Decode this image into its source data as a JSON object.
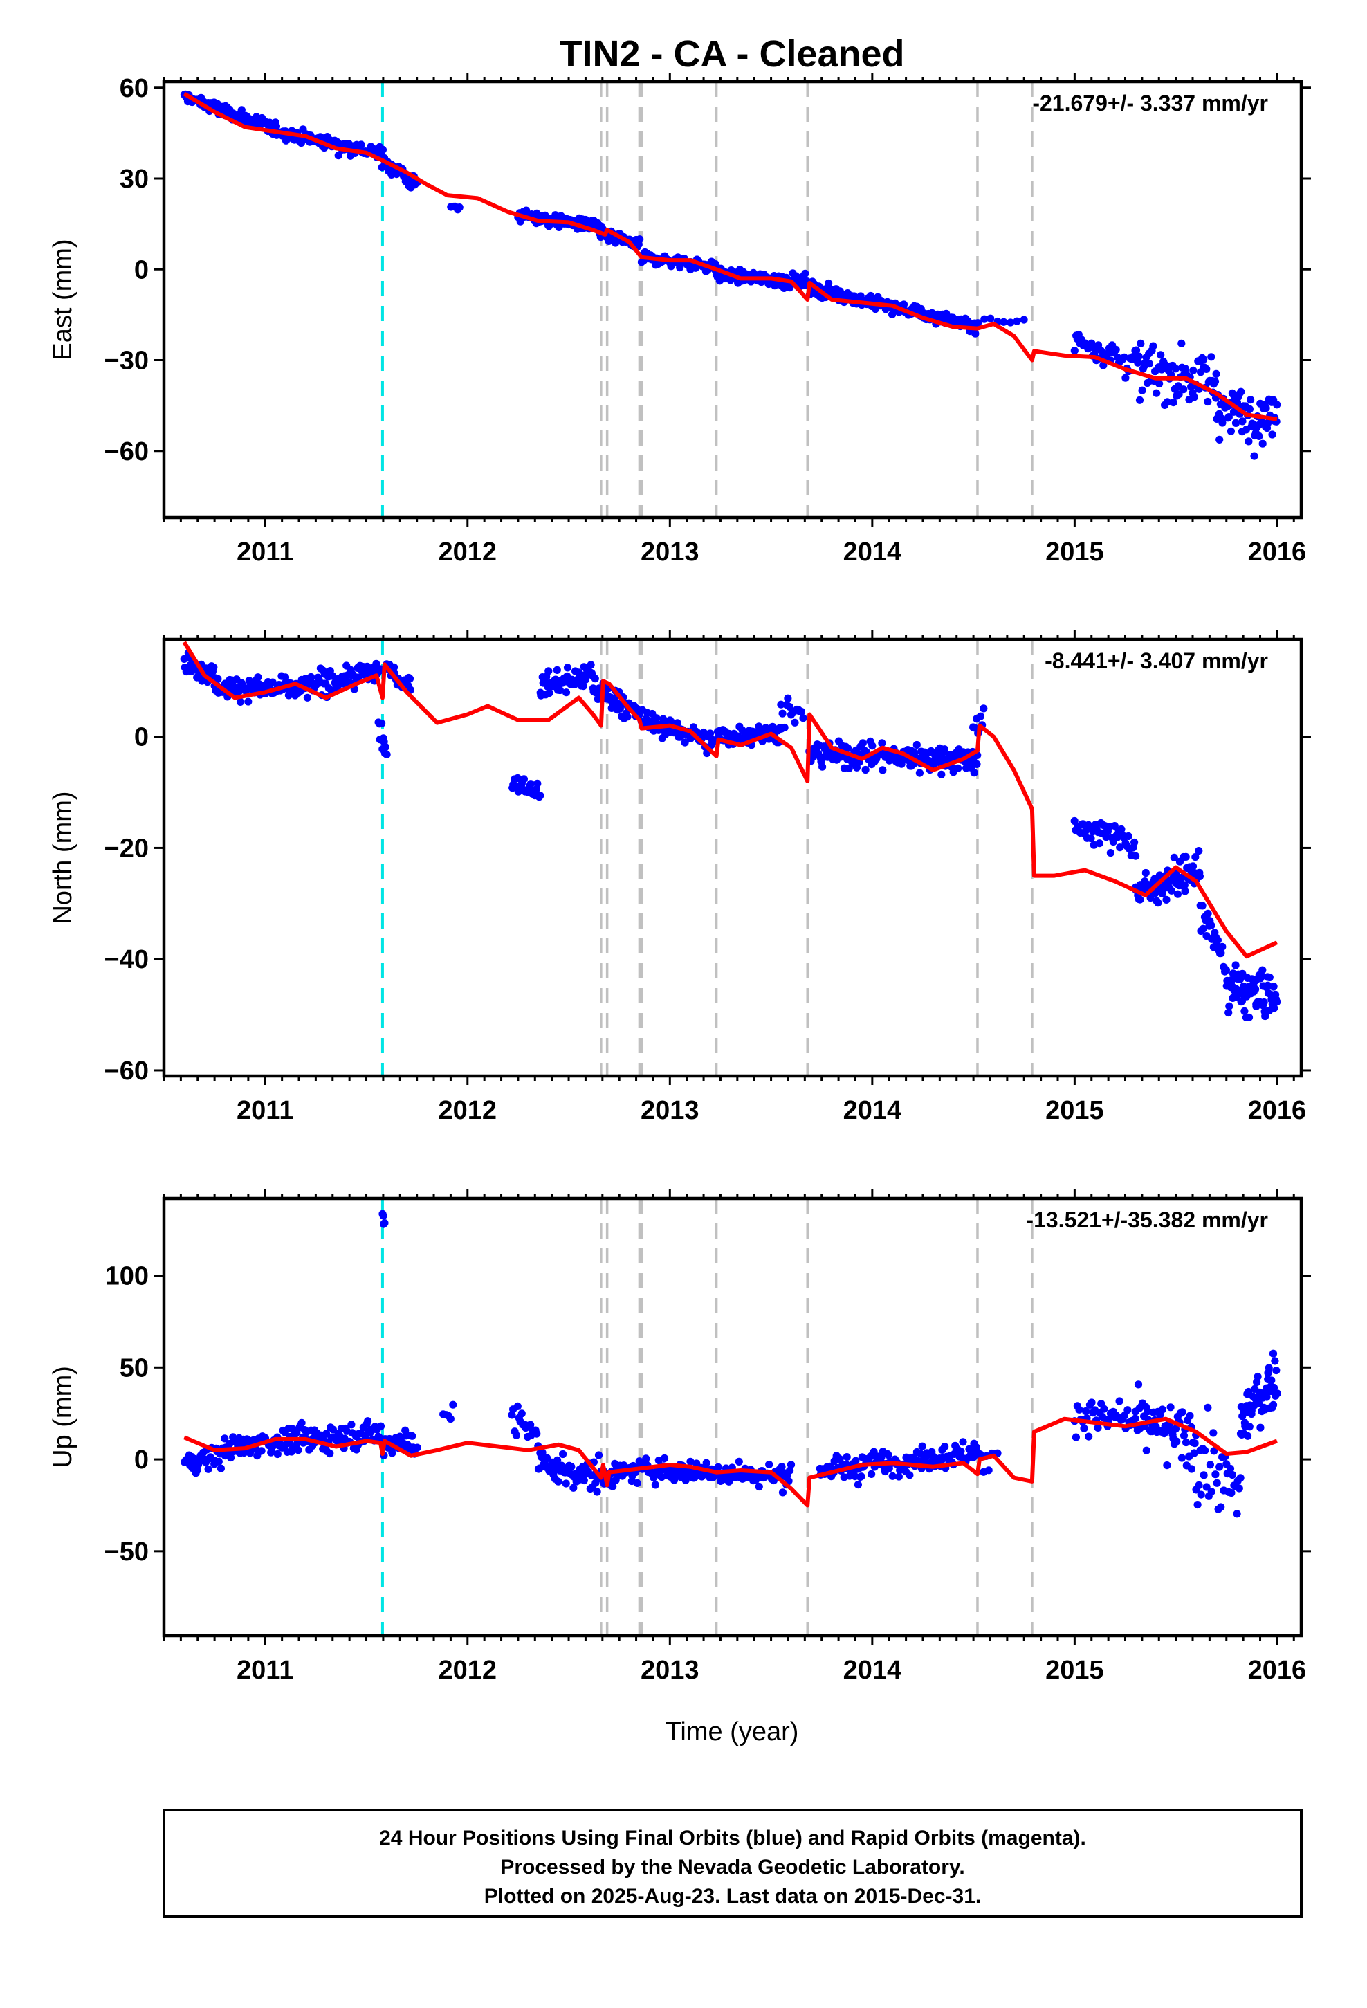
{
  "title": "TIN2  - CA - Cleaned",
  "xlabel": "Time (year)",
  "footer": {
    "line1": "24 Hour Positions Using Final Orbits (blue) and Rapid Orbits (magenta).",
    "line2": "Processed by the Nevada Geodetic Laboratory.",
    "line3": "Plotted on 2025-Aug-23. Last data on 2015-Dec-31."
  },
  "colors": {
    "points": "#0000ff",
    "model": "#ff0000",
    "equipment_change": "#c0c0c0",
    "earthquake": "#00e5e5",
    "axis": "#000000"
  },
  "chart_data": [
    {
      "type": "scatter",
      "panel": "east",
      "ylabel": "East (mm)",
      "rate": "-21.679+/- 3.337 mm/yr",
      "xlim": [
        2010.5,
        2016.12
      ],
      "ylim": [
        -82,
        62
      ],
      "xticks": [
        2011,
        2012,
        2013,
        2014,
        2015,
        2016
      ],
      "yticks": [
        60,
        30,
        0,
        -30,
        -60
      ],
      "ytick_labels": [
        "60",
        "30",
        "0",
        "−30",
        "−60"
      ],
      "gray_lines": [
        2012.66,
        2012.69,
        2012.85,
        2012.86,
        2013.23,
        2013.68,
        2014.52,
        2014.79
      ],
      "cyan_lines": [
        2011.58
      ],
      "model": [
        [
          2010.6,
          58
        ],
        [
          2010.75,
          52
        ],
        [
          2010.9,
          47
        ],
        [
          2011.05,
          45.5
        ],
        [
          2011.2,
          44
        ],
        [
          2011.35,
          40
        ],
        [
          2011.5,
          38.5
        ],
        [
          2011.58,
          36
        ],
        [
          2011.7,
          32
        ],
        [
          2011.8,
          28
        ],
        [
          2011.9,
          24.5
        ],
        [
          2012.05,
          23.5
        ],
        [
          2012.2,
          19
        ],
        [
          2012.35,
          16
        ],
        [
          2012.5,
          15.5
        ],
        [
          2012.62,
          13
        ],
        [
          2012.68,
          11.5
        ],
        [
          2012.69,
          13
        ],
        [
          2012.8,
          9
        ],
        [
          2012.86,
          4
        ],
        [
          2013.0,
          3
        ],
        [
          2013.1,
          3
        ],
        [
          2013.23,
          0
        ],
        [
          2013.35,
          -3
        ],
        [
          2013.5,
          -3
        ],
        [
          2013.6,
          -4
        ],
        [
          2013.68,
          -10
        ],
        [
          2013.69,
          -4.5
        ],
        [
          2013.8,
          -10
        ],
        [
          2013.95,
          -11
        ],
        [
          2014.1,
          -12
        ],
        [
          2014.25,
          -16
        ],
        [
          2014.4,
          -19
        ],
        [
          2014.52,
          -19.5
        ],
        [
          2014.6,
          -18
        ],
        [
          2014.7,
          -22
        ],
        [
          2014.79,
          -30
        ],
        [
          2014.8,
          -27
        ],
        [
          2014.95,
          -28.5
        ],
        [
          2015.1,
          -29
        ],
        [
          2015.25,
          -33
        ],
        [
          2015.4,
          -36
        ],
        [
          2015.55,
          -36
        ],
        [
          2015.7,
          -41
        ],
        [
          2015.85,
          -48
        ],
        [
          2016.0,
          -49.5
        ]
      ],
      "point_groups": [
        {
          "from": 2010.6,
          "to": 2011.1,
          "a": 57,
          "b": 45,
          "sd": 2.0,
          "n": 110
        },
        {
          "from": 2011.1,
          "to": 2011.58,
          "a": 45,
          "b": 38,
          "sd": 2.2,
          "n": 100
        },
        {
          "from": 2011.58,
          "to": 2011.75,
          "a": 36,
          "b": 28,
          "sd": 2.5,
          "n": 35
        },
        {
          "from": 2011.92,
          "to": 2011.96,
          "a": 21,
          "b": 20,
          "sd": 1.2,
          "n": 5
        },
        {
          "from": 2012.25,
          "to": 2012.65,
          "a": 18,
          "b": 14,
          "sd": 2.2,
          "n": 95
        },
        {
          "from": 2012.65,
          "to": 2012.85,
          "a": 12,
          "b": 8,
          "sd": 2.0,
          "n": 45
        },
        {
          "from": 2012.86,
          "to": 2013.23,
          "a": 4,
          "b": 1,
          "sd": 1.8,
          "n": 75
        },
        {
          "from": 2013.23,
          "to": 2013.68,
          "a": -2,
          "b": -4,
          "sd": 2.0,
          "n": 110
        },
        {
          "from": 2013.69,
          "to": 2014.52,
          "a": -6,
          "b": -19,
          "sd": 2.0,
          "n": 190
        },
        {
          "from": 2014.52,
          "to": 2014.75,
          "a": -17,
          "b": -18,
          "sd": 2.0,
          "n": 8
        },
        {
          "from": 2015.0,
          "to": 2015.3,
          "a": -23,
          "b": -31,
          "sd": 4.5,
          "n": 45
        },
        {
          "from": 2015.3,
          "to": 2015.7,
          "a": -33,
          "b": -37,
          "sd": 9.0,
          "n": 75
        },
        {
          "from": 2015.7,
          "to": 2016.0,
          "a": -45,
          "b": -50,
          "sd": 8.0,
          "n": 70
        }
      ]
    },
    {
      "type": "scatter",
      "panel": "north",
      "ylabel": "North (mm)",
      "rate": "-8.441+/- 3.407 mm/yr",
      "xlim": [
        2010.5,
        2016.12
      ],
      "ylim": [
        -61,
        17.5
      ],
      "xticks": [
        2011,
        2012,
        2013,
        2014,
        2015,
        2016
      ],
      "yticks": [
        0,
        -20,
        -40,
        -60
      ],
      "ytick_labels": [
        "0",
        "−20",
        "−40",
        "−60"
      ],
      "gray_lines": [
        2012.66,
        2012.69,
        2012.85,
        2012.86,
        2013.23,
        2013.68,
        2014.52,
        2014.79
      ],
      "cyan_lines": [
        2011.58
      ],
      "model": [
        [
          2010.6,
          17
        ],
        [
          2010.7,
          11
        ],
        [
          2010.85,
          7
        ],
        [
          2011.0,
          8
        ],
        [
          2011.15,
          9.5
        ],
        [
          2011.3,
          7
        ],
        [
          2011.45,
          9.5
        ],
        [
          2011.55,
          11
        ],
        [
          2011.58,
          7
        ],
        [
          2011.59,
          13
        ],
        [
          2011.7,
          8
        ],
        [
          2011.85,
          2.5
        ],
        [
          2012.0,
          4
        ],
        [
          2012.1,
          5.5
        ],
        [
          2012.25,
          3
        ],
        [
          2012.4,
          3
        ],
        [
          2012.55,
          7
        ],
        [
          2012.62,
          4
        ],
        [
          2012.66,
          2
        ],
        [
          2012.67,
          10
        ],
        [
          2012.7,
          9.5
        ],
        [
          2012.8,
          5
        ],
        [
          2012.85,
          3
        ],
        [
          2012.86,
          1.5
        ],
        [
          2013.0,
          2
        ],
        [
          2013.1,
          1
        ],
        [
          2013.23,
          -3.5
        ],
        [
          2013.24,
          -0.5
        ],
        [
          2013.35,
          -1.5
        ],
        [
          2013.5,
          0.5
        ],
        [
          2013.6,
          -2
        ],
        [
          2013.68,
          -8
        ],
        [
          2013.69,
          4
        ],
        [
          2013.8,
          -2
        ],
        [
          2013.95,
          -4
        ],
        [
          2014.05,
          -2
        ],
        [
          2014.15,
          -3
        ],
        [
          2014.3,
          -6
        ],
        [
          2014.45,
          -4
        ],
        [
          2014.52,
          -2.5
        ],
        [
          2014.53,
          2
        ],
        [
          2014.6,
          0
        ],
        [
          2014.7,
          -6
        ],
        [
          2014.79,
          -13
        ],
        [
          2014.8,
          -25
        ],
        [
          2014.9,
          -25
        ],
        [
          2015.05,
          -24
        ],
        [
          2015.2,
          -26
        ],
        [
          2015.35,
          -28.5
        ],
        [
          2015.5,
          -23.5
        ],
        [
          2015.6,
          -26
        ],
        [
          2015.75,
          -35
        ],
        [
          2015.85,
          -39.5
        ],
        [
          2016.0,
          -37
        ]
      ],
      "point_groups": [
        {
          "from": 2010.6,
          "to": 2010.75,
          "a": 14,
          "b": 11,
          "sd": 2.0,
          "n": 30
        },
        {
          "from": 2010.75,
          "to": 2011.2,
          "a": 9,
          "b": 8.5,
          "sd": 1.8,
          "n": 95
        },
        {
          "from": 2011.2,
          "to": 2011.57,
          "a": 9,
          "b": 12,
          "sd": 2.0,
          "n": 75
        },
        {
          "from": 2011.56,
          "to": 2011.6,
          "a": 2,
          "b": -2,
          "sd": 2.5,
          "n": 10
        },
        {
          "from": 2011.6,
          "to": 2011.72,
          "a": 12,
          "b": 9,
          "sd": 2.0,
          "n": 25
        },
        {
          "from": 2012.22,
          "to": 2012.36,
          "a": -8,
          "b": -10,
          "sd": 1.6,
          "n": 22
        },
        {
          "from": 2012.36,
          "to": 2012.62,
          "a": 9,
          "b": 11,
          "sd": 2.0,
          "n": 60
        },
        {
          "from": 2012.62,
          "to": 2012.85,
          "a": 9,
          "b": 4,
          "sd": 2.0,
          "n": 50
        },
        {
          "from": 2012.86,
          "to": 2013.23,
          "a": 3,
          "b": -1,
          "sd": 1.8,
          "n": 70
        },
        {
          "from": 2013.23,
          "to": 2013.55,
          "a": 0,
          "b": 1,
          "sd": 1.8,
          "n": 60
        },
        {
          "from": 2013.55,
          "to": 2013.66,
          "a": 5,
          "b": 3,
          "sd": 2.5,
          "n": 14
        },
        {
          "from": 2013.69,
          "to": 2014.52,
          "a": -3,
          "b": -4,
          "sd": 2.2,
          "n": 175
        },
        {
          "from": 2014.5,
          "to": 2014.55,
          "a": 1,
          "b": 2,
          "sd": 2.5,
          "n": 8
        },
        {
          "from": 2015.0,
          "to": 2015.3,
          "a": -16,
          "b": -19,
          "sd": 2.3,
          "n": 45
        },
        {
          "from": 2015.3,
          "to": 2015.62,
          "a": -28,
          "b": -24,
          "sd": 2.8,
          "n": 75
        },
        {
          "from": 2015.62,
          "to": 2015.75,
          "a": -30,
          "b": -42,
          "sd": 3.5,
          "n": 25
        },
        {
          "from": 2015.75,
          "to": 2016.0,
          "a": -45,
          "b": -47,
          "sd": 4.0,
          "n": 80
        }
      ]
    },
    {
      "type": "scatter",
      "panel": "up",
      "ylabel": "Up (mm)",
      "rate": "-13.521+/-35.382 mm/yr",
      "xlim": [
        2010.5,
        2016.12
      ],
      "ylim": [
        -96,
        142
      ],
      "xticks": [
        2011,
        2012,
        2013,
        2014,
        2015,
        2016
      ],
      "yticks": [
        100,
        50,
        0,
        -50
      ],
      "ytick_labels": [
        "100",
        "50",
        "0",
        "−50"
      ],
      "gray_lines": [
        2012.66,
        2012.69,
        2012.85,
        2012.86,
        2013.23,
        2013.68,
        2014.52,
        2014.79
      ],
      "cyan_lines": [
        2011.58
      ],
      "model": [
        [
          2010.6,
          12
        ],
        [
          2010.75,
          5
        ],
        [
          2010.9,
          6
        ],
        [
          2011.05,
          11
        ],
        [
          2011.2,
          11
        ],
        [
          2011.35,
          7
        ],
        [
          2011.5,
          10
        ],
        [
          2011.57,
          9
        ],
        [
          2011.58,
          3
        ],
        [
          2011.59,
          10
        ],
        [
          2011.72,
          2
        ],
        [
          2011.85,
          5
        ],
        [
          2012.0,
          9
        ],
        [
          2012.15,
          7
        ],
        [
          2012.3,
          5
        ],
        [
          2012.45,
          8
        ],
        [
          2012.55,
          5
        ],
        [
          2012.66,
          -10
        ],
        [
          2012.67,
          -3
        ],
        [
          2012.69,
          -14
        ],
        [
          2012.7,
          -7
        ],
        [
          2012.85,
          -5
        ],
        [
          2013.0,
          -3
        ],
        [
          2013.1,
          -4
        ],
        [
          2013.23,
          -7
        ],
        [
          2013.35,
          -6
        ],
        [
          2013.5,
          -7
        ],
        [
          2013.6,
          -16
        ],
        [
          2013.68,
          -25
        ],
        [
          2013.69,
          -10
        ],
        [
          2013.8,
          -7
        ],
        [
          2013.95,
          -3
        ],
        [
          2014.1,
          -2
        ],
        [
          2014.3,
          -4
        ],
        [
          2014.45,
          -2
        ],
        [
          2014.52,
          -8
        ],
        [
          2014.53,
          0
        ],
        [
          2014.6,
          2
        ],
        [
          2014.7,
          -10
        ],
        [
          2014.79,
          -12
        ],
        [
          2014.8,
          15
        ],
        [
          2014.95,
          22
        ],
        [
          2015.1,
          20
        ],
        [
          2015.25,
          18
        ],
        [
          2015.45,
          22
        ],
        [
          2015.6,
          15
        ],
        [
          2015.75,
          3
        ],
        [
          2015.85,
          4
        ],
        [
          2016.0,
          10
        ]
      ],
      "point_groups": [
        {
          "from": 2010.6,
          "to": 2010.8,
          "a": -2,
          "b": 3,
          "sd": 6.0,
          "n": 35
        },
        {
          "from": 2010.8,
          "to": 2011.2,
          "a": 6,
          "b": 12,
          "sd": 6.0,
          "n": 80
        },
        {
          "from": 2011.2,
          "to": 2011.57,
          "a": 10,
          "b": 15,
          "sd": 7.0,
          "n": 70
        },
        {
          "from": 2011.58,
          "to": 2011.75,
          "a": 8,
          "b": 10,
          "sd": 8.0,
          "n": 30
        },
        {
          "from": 2011.58,
          "to": 2011.59,
          "a": 134,
          "b": 130,
          "sd": 4.0,
          "n": 4
        },
        {
          "from": 2011.88,
          "to": 2011.93,
          "a": 20,
          "b": 28,
          "sd": 6.0,
          "n": 5
        },
        {
          "from": 2012.22,
          "to": 2012.35,
          "a": 20,
          "b": 15,
          "sd": 9.0,
          "n": 20
        },
        {
          "from": 2012.35,
          "to": 2012.66,
          "a": -3,
          "b": -10,
          "sd": 8.0,
          "n": 60
        },
        {
          "from": 2012.66,
          "to": 2012.85,
          "a": -8,
          "b": -7,
          "sd": 6.0,
          "n": 40
        },
        {
          "from": 2012.86,
          "to": 2013.6,
          "a": -5,
          "b": -9,
          "sd": 6.0,
          "n": 130
        },
        {
          "from": 2013.74,
          "to": 2014.52,
          "a": -6,
          "b": 4,
          "sd": 6.5,
          "n": 150
        },
        {
          "from": 2014.52,
          "to": 2014.62,
          "a": -2,
          "b": 3,
          "sd": 7.0,
          "n": 8
        },
        {
          "from": 2015.0,
          "to": 2015.3,
          "a": 25,
          "b": 20,
          "sd": 9.0,
          "n": 40
        },
        {
          "from": 2015.3,
          "to": 2015.6,
          "a": 20,
          "b": 10,
          "sd": 14.0,
          "n": 60
        },
        {
          "from": 2015.6,
          "to": 2015.82,
          "a": 0,
          "b": -20,
          "sd": 20.0,
          "n": 35
        },
        {
          "from": 2015.82,
          "to": 2016.0,
          "a": 20,
          "b": 45,
          "sd": 14.0,
          "n": 55
        }
      ]
    }
  ]
}
